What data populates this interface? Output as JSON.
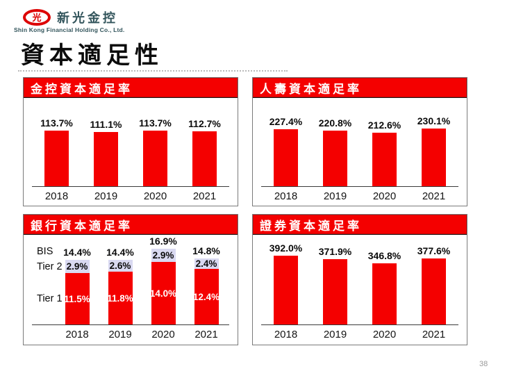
{
  "logo": {
    "symbol": "光",
    "company_zh": "新光金控",
    "company_en": "Shin Kong Financial Holding Co., Ltd."
  },
  "page_title": "資本適足性",
  "page_number": "38",
  "colors": {
    "bar_red": "#f40000",
    "header_red": "#f40000",
    "tier2_lavender": "#d9d9f1",
    "logo_red": "#dd0404",
    "logo_text_teal": "#33555c"
  },
  "chart_data": [
    {
      "id": "holding",
      "type": "bar",
      "title": "金控資本適足率",
      "categories": [
        "2018",
        "2019",
        "2020",
        "2021"
      ],
      "values": [
        113.7,
        111.1,
        113.7,
        112.7
      ],
      "value_labels": [
        "113.7%",
        "111.1%",
        "113.7%",
        "112.7%"
      ],
      "ylim": [
        0,
        130
      ],
      "grid": false,
      "legend": "none"
    },
    {
      "id": "life",
      "type": "bar",
      "title": "人壽資本適足率",
      "categories": [
        "2018",
        "2019",
        "2020",
        "2021"
      ],
      "values": [
        227.4,
        220.8,
        212.6,
        230.1
      ],
      "value_labels": [
        "227.4%",
        "220.8%",
        "212.6%",
        "230.1%"
      ],
      "ylim": [
        0,
        260
      ],
      "grid": false,
      "legend": "none"
    },
    {
      "id": "bank",
      "type": "stacked-bar",
      "title": "銀行資本適足率",
      "categories": [
        "2018",
        "2019",
        "2020",
        "2021"
      ],
      "row_labels": [
        "BIS",
        "Tier 2",
        "Tier 1"
      ],
      "series": [
        {
          "name": "BIS",
          "values": [
            14.4,
            14.4,
            16.9,
            14.8
          ],
          "labels": [
            "14.4%",
            "14.4%",
            "16.9%",
            "14.8%"
          ]
        },
        {
          "name": "Tier 2",
          "values": [
            2.9,
            2.6,
            2.9,
            2.4
          ],
          "labels": [
            "2.9%",
            "2.6%",
            "2.9%",
            "2.4%"
          ]
        },
        {
          "name": "Tier 1",
          "values": [
            11.5,
            11.8,
            14.0,
            12.4
          ],
          "labels": [
            "11.5%",
            "11.8%",
            "14.0%",
            "12.4%"
          ]
        }
      ],
      "ylim": [
        0,
        20
      ],
      "grid": false,
      "legend": "left-row-labels"
    },
    {
      "id": "securities",
      "type": "bar",
      "title": "證券資本適足率",
      "categories": [
        "2018",
        "2019",
        "2020",
        "2021"
      ],
      "values": [
        392.0,
        371.9,
        346.8,
        377.6
      ],
      "value_labels": [
        "392.0%",
        "371.9%",
        "346.8%",
        "377.6%"
      ],
      "ylim": [
        0,
        450
      ],
      "grid": false,
      "legend": "none"
    }
  ]
}
